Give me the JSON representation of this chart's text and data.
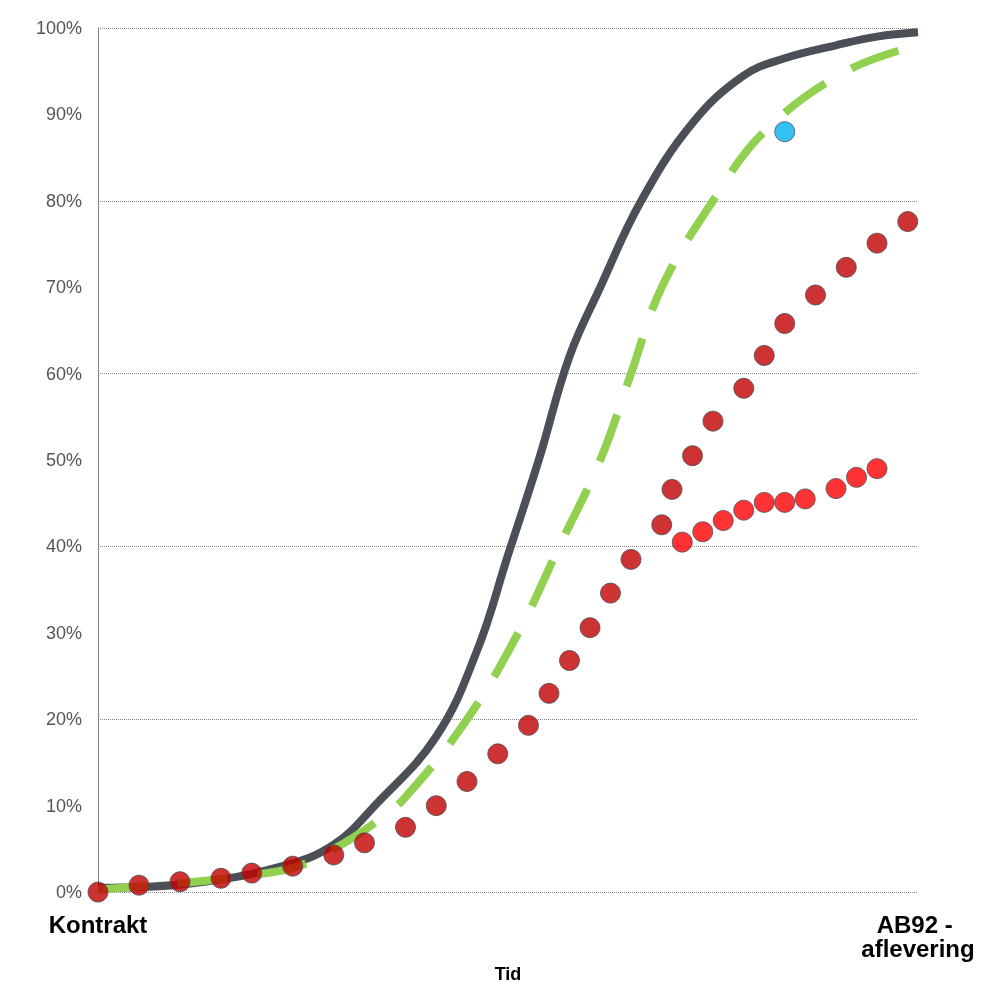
{
  "chart_data": {
    "type": "line",
    "xlabel": "Tid",
    "categories": [
      "Kontrakt",
      null,
      null,
      null,
      null,
      null,
      null,
      null,
      null,
      null,
      null,
      null,
      null,
      null,
      null,
      null,
      null,
      null,
      null,
      null,
      null,
      null,
      null,
      null,
      null,
      null,
      null,
      null,
      null,
      null,
      null,
      null,
      null,
      null,
      null,
      null,
      null,
      null,
      null,
      null,
      null,
      null,
      null,
      null,
      null,
      null,
      null,
      null,
      null,
      null,
      null,
      null,
      null,
      null,
      null,
      null,
      null,
      null,
      null,
      null,
      null,
      null,
      null,
      null,
      null,
      null,
      null,
      null,
      null,
      null,
      null,
      null,
      null,
      null,
      null,
      null,
      null,
      null,
      null,
      null,
      "AB92 - aflevering"
    ],
    "ylim": [
      0,
      100
    ],
    "yticks": [
      {
        "value": 0,
        "label": "0%"
      },
      {
        "value": 10,
        "label": "10%"
      },
      {
        "value": 20,
        "label": "20%"
      },
      {
        "value": 30,
        "label": "30%"
      },
      {
        "value": 40,
        "label": "40%"
      },
      {
        "value": 50,
        "label": "50%"
      },
      {
        "value": 60,
        "label": "60%"
      },
      {
        "value": 70,
        "label": "70%"
      },
      {
        "value": 80,
        "label": "80%"
      },
      {
        "value": 90,
        "label": "90%"
      },
      {
        "value": 100,
        "label": "100%"
      }
    ],
    "grid": "y",
    "series": [
      {
        "color": "#4a5056",
        "marker": "none",
        "line_style": "solid",
        "values": [
          0.5,
          null,
          null,
          null,
          null,
          null,
          null,
          null,
          null,
          1,
          null,
          null,
          null,
          null,
          null,
          null,
          null,
          null,
          3,
          null,
          null,
          null,
          null,
          5.5,
          null,
          null,
          null,
          10,
          null,
          null,
          null,
          null,
          null,
          18,
          null,
          null,
          null,
          28,
          null,
          null,
          39,
          null,
          null,
          50,
          null,
          null,
          62,
          null,
          null,
          70,
          null,
          null,
          null,
          80,
          null,
          null,
          null,
          null,
          89,
          null,
          null,
          null,
          null,
          94.5,
          null,
          null,
          null,
          96.5,
          null,
          null,
          null,
          null,
          98,
          null,
          null,
          null,
          99,
          null,
          null,
          null,
          99.5
        ]
      },
      {
        "color": "#92d050",
        "marker": "none",
        "line_style": "dashed",
        "values": [
          0.3,
          null,
          null,
          null,
          null,
          null,
          null,
          null,
          null,
          null,
          null,
          null,
          null,
          null,
          null,
          null,
          null,
          null,
          2.5,
          null,
          null,
          null,
          null,
          5,
          null,
          null,
          null,
          8,
          null,
          null,
          11,
          null,
          null,
          null,
          null,
          null,
          20,
          null,
          null,
          null,
          null,
          30,
          null,
          null,
          null,
          40,
          null,
          null,
          null,
          50,
          null,
          null,
          60,
          null,
          null,
          70,
          null,
          null,
          null,
          null,
          80,
          null,
          null,
          null,
          null,
          88,
          null,
          null,
          null,
          null,
          null,
          null,
          null,
          95,
          null,
          null,
          null,
          null,
          null,
          null,
          98
        ]
      },
      {
        "type": "scatter",
        "color": "#c00000",
        "marker": "circle",
        "values": [
          0,
          null,
          null,
          null,
          0.8,
          null,
          null,
          null,
          1.2,
          null,
          null,
          null,
          1.6,
          null,
          null,
          2.2,
          null,
          null,
          null,
          3,
          null,
          null,
          null,
          4.3,
          null,
          null,
          5.7,
          null,
          null,
          null,
          7.5,
          null,
          null,
          10,
          null,
          null,
          12.8,
          null,
          null,
          16,
          null,
          null,
          19.3,
          null,
          23,
          null,
          26.8,
          null,
          30.6,
          null,
          34.6,
          null,
          38.5,
          null,
          null,
          42.5,
          46.6,
          null,
          50.5,
          null,
          54.5,
          null,
          null,
          58.3,
          null,
          62.1,
          null,
          65.8,
          null,
          null,
          69.1,
          null,
          null,
          72.3,
          null,
          null,
          75.1,
          null,
          null,
          77.6,
          null
        ]
      },
      {
        "type": "scatter",
        "color": "#ff0000",
        "marker": "circle",
        "values": [
          null,
          null,
          null,
          null,
          null,
          null,
          null,
          null,
          null,
          null,
          null,
          null,
          null,
          null,
          null,
          null,
          null,
          null,
          null,
          null,
          null,
          null,
          null,
          null,
          null,
          null,
          null,
          null,
          null,
          null,
          null,
          null,
          null,
          null,
          null,
          null,
          null,
          null,
          null,
          null,
          null,
          null,
          null,
          null,
          null,
          null,
          null,
          null,
          null,
          null,
          null,
          null,
          null,
          null,
          null,
          null,
          null,
          40.5,
          null,
          41.7,
          null,
          43,
          null,
          44.2,
          null,
          45.1,
          null,
          45.1,
          null,
          45.5,
          null,
          null,
          46.7,
          null,
          48,
          null,
          49,
          null,
          null,
          null,
          null
        ]
      },
      {
        "type": "scatter",
        "color": "#00b0f0",
        "marker": "circle",
        "values": [
          null,
          null,
          null,
          null,
          null,
          null,
          null,
          null,
          null,
          null,
          null,
          null,
          null,
          null,
          null,
          null,
          null,
          null,
          null,
          null,
          null,
          null,
          null,
          null,
          null,
          null,
          null,
          null,
          null,
          null,
          null,
          null,
          null,
          null,
          null,
          null,
          null,
          null,
          null,
          null,
          null,
          null,
          null,
          null,
          null,
          null,
          null,
          null,
          null,
          null,
          null,
          null,
          null,
          null,
          null,
          null,
          null,
          null,
          null,
          null,
          null,
          null,
          null,
          null,
          null,
          null,
          null,
          88,
          null,
          null,
          null,
          null,
          null,
          null,
          null,
          null,
          null,
          null,
          null,
          null,
          null
        ]
      }
    ]
  }
}
